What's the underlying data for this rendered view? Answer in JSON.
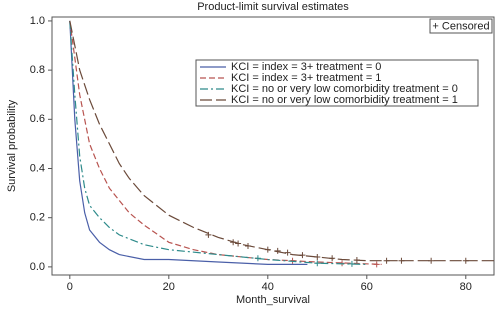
{
  "chart_data": {
    "type": "line",
    "title": "Product-limit survival estimates",
    "x_label": "Month_survival",
    "y_label": "Survival probability",
    "censored_label": "+ Censored",
    "xlim": [
      -3.6,
      85.7
    ],
    "ylim": [
      -0.033,
      1.016
    ],
    "xticks": [
      0,
      20,
      40,
      60,
      80
    ],
    "yticks": [
      {
        "value": 0,
        "label": "0.0"
      },
      {
        "value": 0.2,
        "label": "0.2"
      },
      {
        "value": 0.4,
        "label": "0.4"
      },
      {
        "value": 0.6,
        "label": "0.6"
      },
      {
        "value": 0.8,
        "label": "0.8"
      },
      {
        "value": 1,
        "label": "1.0"
      }
    ],
    "series": [
      {
        "name": "KCI = index = 3+ treatment = 0",
        "color": "#4a5fa8",
        "dash": "none",
        "x": [
          0,
          1,
          2,
          3,
          4,
          6,
          8,
          10,
          15,
          20,
          30,
          40,
          48
        ],
        "values": [
          1.0,
          0.6,
          0.35,
          0.22,
          0.15,
          0.1,
          0.07,
          0.05,
          0.03,
          0.03,
          0.02,
          0.01,
          0.01
        ],
        "censored_x": [],
        "censored_values": []
      },
      {
        "name": "KCI = index = 3+ treatment = 1",
        "color": "#b85450",
        "dash": "6,3",
        "x": [
          0,
          1,
          2,
          4,
          6,
          8,
          10,
          12,
          15,
          20,
          25,
          30,
          40,
          50,
          63
        ],
        "values": [
          1.0,
          0.85,
          0.7,
          0.5,
          0.4,
          0.32,
          0.27,
          0.22,
          0.17,
          0.1,
          0.07,
          0.05,
          0.03,
          0.02,
          0.01
        ],
        "censored_x": [
          45,
          55,
          62
        ],
        "censored_values": [
          0.025,
          0.015,
          0.01
        ]
      },
      {
        "name": "KCI = no or very low comorbidity treatment = 0",
        "color": "#2e8b8b",
        "dash": "8,3,2,3",
        "x": [
          0,
          1,
          2,
          3,
          4,
          6,
          8,
          10,
          15,
          20,
          30,
          40,
          50,
          60
        ],
        "values": [
          1.0,
          0.7,
          0.45,
          0.32,
          0.25,
          0.2,
          0.16,
          0.13,
          0.09,
          0.07,
          0.05,
          0.03,
          0.015,
          0.01
        ],
        "censored_x": [
          38,
          50,
          57
        ],
        "censored_values": [
          0.035,
          0.015,
          0.012
        ]
      },
      {
        "name": "KCI = no or very low comorbidity treatment = 1",
        "color": "#6b4a3a",
        "dash": "12,4",
        "x": [
          0,
          1,
          2,
          4,
          6,
          8,
          10,
          12,
          15,
          20,
          25,
          30,
          35,
          40,
          45,
          50,
          55,
          60,
          70,
          86
        ],
        "values": [
          1.0,
          0.9,
          0.8,
          0.68,
          0.58,
          0.5,
          0.42,
          0.36,
          0.29,
          0.21,
          0.16,
          0.12,
          0.09,
          0.07,
          0.05,
          0.04,
          0.03,
          0.025,
          0.025,
          0.025
        ],
        "censored_x": [
          28,
          33,
          34,
          36,
          40,
          42,
          44,
          47,
          50,
          53,
          58,
          64,
          67,
          73,
          80
        ],
        "values_note_free": null,
        "censored_values": [
          0.13,
          0.1,
          0.095,
          0.085,
          0.07,
          0.065,
          0.058,
          0.048,
          0.04,
          0.035,
          0.028,
          0.025,
          0.025,
          0.025,
          0.025
        ]
      }
    ]
  }
}
